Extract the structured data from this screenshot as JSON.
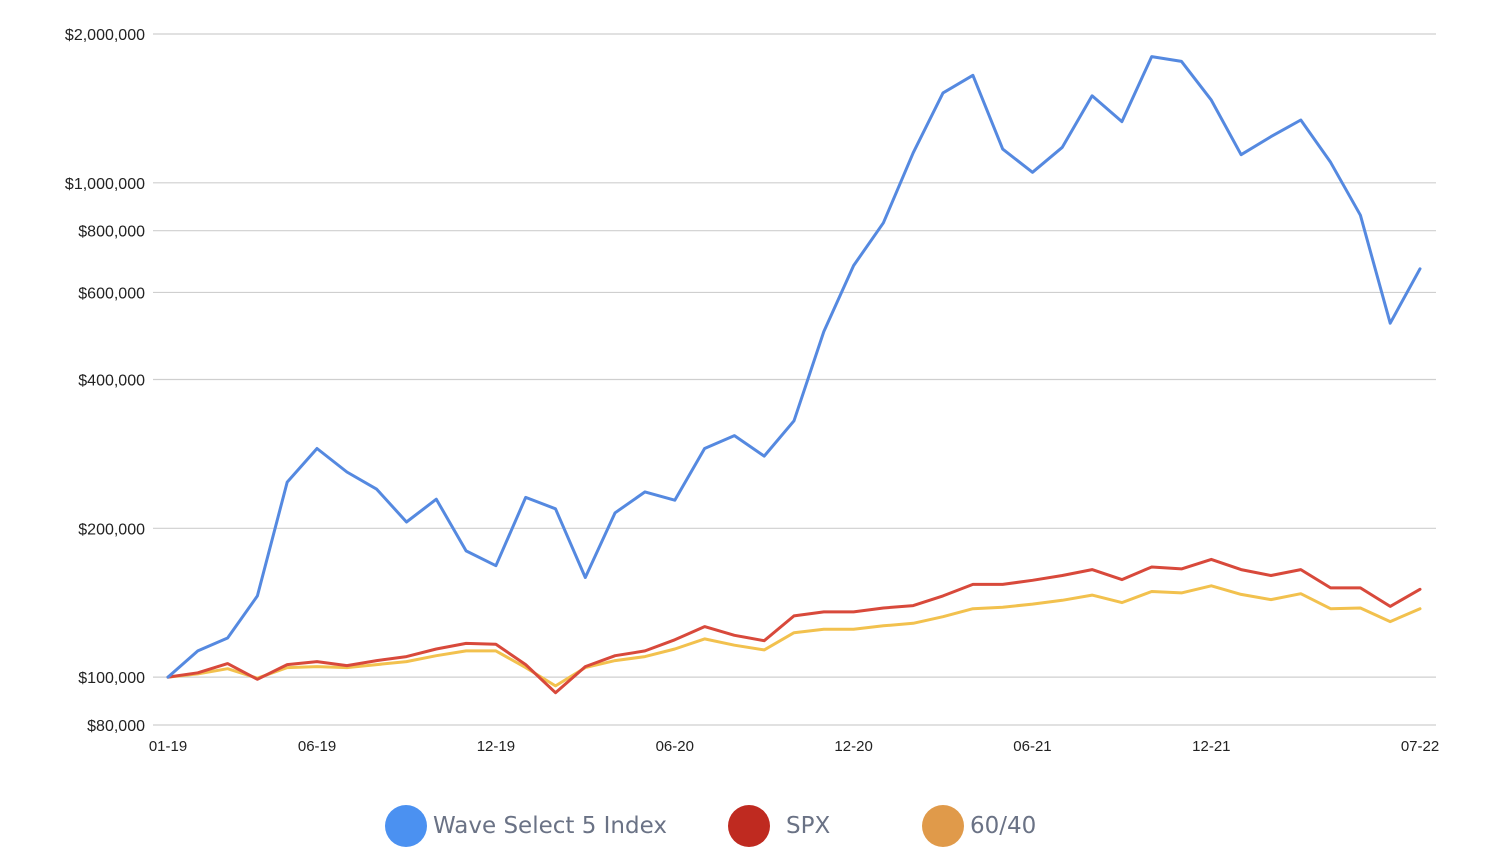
{
  "chart_data": {
    "type": "line",
    "title": "",
    "xlabel": "",
    "ylabel": "",
    "y_scale": "log",
    "ylim": [
      80000,
      2000000
    ],
    "y_ticks": [
      {
        "value": 2000000,
        "label": "$2,000,000"
      },
      {
        "value": 1000000,
        "label": "$1,000,000"
      },
      {
        "value": 800000,
        "label": "$800,000"
      },
      {
        "value": 600000,
        "label": "$600,000"
      },
      {
        "value": 400000,
        "label": "$400,000"
      },
      {
        "value": 200000,
        "label": "$200,000"
      },
      {
        "value": 100000,
        "label": "$100,000"
      },
      {
        "value": 80000,
        "label": "$80,000"
      }
    ],
    "x": [
      "01-19",
      "02-19",
      "03-19",
      "04-19",
      "05-19",
      "06-19",
      "07-19",
      "08-19",
      "09-19",
      "10-19",
      "11-19",
      "12-19",
      "01-20",
      "02-20",
      "03-20",
      "04-20",
      "05-20",
      "06-20",
      "07-20",
      "08-20",
      "09-20",
      "10-20",
      "11-20",
      "12-20",
      "01-21",
      "02-21",
      "03-21",
      "04-21",
      "05-21",
      "06-21",
      "07-21",
      "08-21",
      "09-21",
      "10-21",
      "11-21",
      "12-21",
      "01-22",
      "02-22",
      "03-22",
      "04-22",
      "05-22",
      "06-22",
      "07-22"
    ],
    "x_tick_labels": [
      "01-19",
      "06-19",
      "12-19",
      "06-20",
      "12-20",
      "06-21",
      "12-21",
      "07-22"
    ],
    "grid": true,
    "legend_position": "bottom",
    "series": [
      {
        "name": "Wave Select 5 Index",
        "color": "#5589e0",
        "values": [
          100000,
          113000,
          120000,
          146000,
          248000,
          290000,
          260000,
          240000,
          206000,
          229000,
          180000,
          168000,
          231000,
          219000,
          159000,
          215000,
          237000,
          228000,
          290000,
          308000,
          280000,
          330000,
          500000,
          680000,
          830000,
          1150000,
          1520000,
          1650000,
          1170000,
          1050000,
          1180000,
          1500000,
          1330000,
          1800000,
          1760000,
          1470000,
          1140000,
          1240000,
          1340000,
          1100000,
          860000,
          520000,
          670000
        ]
      },
      {
        "name": "SPX",
        "color": "#d8493b",
        "values": [
          100000,
          102000,
          106500,
          99000,
          106000,
          107500,
          105500,
          108000,
          110000,
          114000,
          117000,
          116500,
          106000,
          93000,
          105000,
          110500,
          113000,
          119000,
          126500,
          121500,
          118500,
          133000,
          135500,
          135500,
          138000,
          139500,
          146000,
          154000,
          154000,
          157000,
          160500,
          165000,
          157500,
          167000,
          165500,
          173000,
          165000,
          160500,
          165000,
          151500,
          151500,
          139000,
          150500
        ]
      },
      {
        "name": "60/40",
        "color": "#f2c14e",
        "values": [
          100000,
          101500,
          104000,
          99500,
          104500,
          105000,
          104500,
          106000,
          107500,
          110500,
          113000,
          113000,
          104500,
          96000,
          104500,
          108000,
          110000,
          114000,
          119500,
          116000,
          113500,
          123000,
          125000,
          125000,
          127000,
          128500,
          132500,
          137500,
          138500,
          140500,
          143000,
          146500,
          141500,
          149000,
          148000,
          153000,
          147000,
          143500,
          147500,
          137500,
          138000,
          129500,
          137500
        ]
      }
    ]
  },
  "legend": {
    "items": [
      {
        "label": "Wave Select 5 Index",
        "color": "#4b91f1"
      },
      {
        "label": "SPX",
        "color": "#bf2a20"
      },
      {
        "label": "60/40",
        "color": "#e09a4a"
      }
    ]
  }
}
